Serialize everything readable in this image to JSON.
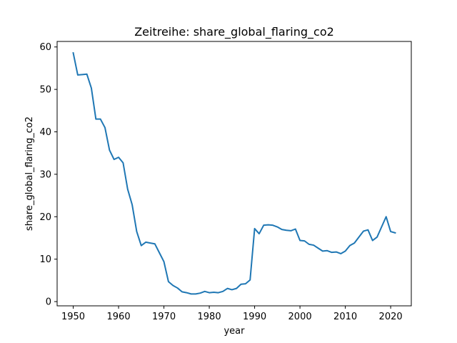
{
  "chart_data": {
    "type": "line",
    "title": "Zeitreihe: share_global_flaring_co2",
    "xlabel": "year",
    "ylabel": "share_global_flaring_co2",
    "xlim": [
      1946.45,
      2024.55
    ],
    "ylim": [
      -1.0,
      61.3
    ],
    "xticks": [
      1950,
      1960,
      1970,
      1980,
      1990,
      2000,
      2010,
      2020
    ],
    "yticks": [
      0,
      10,
      20,
      30,
      40,
      50,
      60
    ],
    "grid": false,
    "legend": "none",
    "series": [
      {
        "color": "#1f77b4",
        "x": [
          1950,
          1951,
          1952,
          1953,
          1954,
          1955,
          1956,
          1957,
          1958,
          1959,
          1960,
          1961,
          1962,
          1963,
          1964,
          1965,
          1966,
          1967,
          1968,
          1969,
          1970,
          1971,
          1972,
          1973,
          1974,
          1975,
          1976,
          1977,
          1978,
          1979,
          1980,
          1981,
          1982,
          1983,
          1984,
          1985,
          1986,
          1987,
          1988,
          1989,
          1990,
          1991,
          1992,
          1993,
          1994,
          1995,
          1996,
          1997,
          1998,
          1999,
          2000,
          2001,
          2002,
          2003,
          2004,
          2005,
          2006,
          2007,
          2008,
          2009,
          2010,
          2011,
          2012,
          2013,
          2014,
          2015,
          2016,
          2017,
          2018,
          2019,
          2020,
          2021
        ],
        "y": [
          58.6,
          53.4,
          53.5,
          53.6,
          50.3,
          43.0,
          43.0,
          41.0,
          35.7,
          33.5,
          34.0,
          32.7,
          26.5,
          22.8,
          16.5,
          13.2,
          14.0,
          13.8,
          13.6,
          11.5,
          9.4,
          4.7,
          3.8,
          3.2,
          2.3,
          2.1,
          1.8,
          1.8,
          2.0,
          2.4,
          2.1,
          2.2,
          2.1,
          2.4,
          3.1,
          2.8,
          3.1,
          4.1,
          4.2,
          5.1,
          17.2,
          16.0,
          18.0,
          18.1,
          18.0,
          17.6,
          17.0,
          16.8,
          16.7,
          17.1,
          14.4,
          14.3,
          13.5,
          13.3,
          12.6,
          11.9,
          12.0,
          11.6,
          11.7,
          11.3,
          11.9,
          13.2,
          13.8,
          15.2,
          16.6,
          16.9,
          14.4,
          15.2,
          17.6,
          20.0,
          16.5,
          16.2
        ]
      }
    ]
  }
}
